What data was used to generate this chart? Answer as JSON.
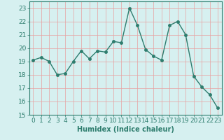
{
  "x": [
    0,
    1,
    2,
    3,
    4,
    5,
    6,
    7,
    8,
    9,
    10,
    11,
    12,
    13,
    14,
    15,
    16,
    17,
    18,
    19,
    20,
    21,
    22,
    23
  ],
  "y": [
    19.1,
    19.3,
    19.0,
    18.0,
    18.1,
    19.0,
    19.8,
    19.2,
    19.8,
    19.7,
    20.5,
    20.4,
    23.0,
    21.7,
    19.9,
    19.4,
    19.1,
    21.7,
    22.0,
    21.0,
    17.9,
    17.1,
    16.5,
    15.5
  ],
  "line_color": "#2e7d6e",
  "marker_color": "#2e7d6e",
  "bg_color": "#d6f0f0",
  "grid_color": "#e8a0a0",
  "xlabel": "Humidex (Indice chaleur)",
  "ylim": [
    15,
    23.5
  ],
  "xlim": [
    -0.5,
    23.5
  ],
  "yticks": [
    15,
    16,
    17,
    18,
    19,
    20,
    21,
    22,
    23
  ],
  "xticks": [
    0,
    1,
    2,
    3,
    4,
    5,
    6,
    7,
    8,
    9,
    10,
    11,
    12,
    13,
    14,
    15,
    16,
    17,
    18,
    19,
    20,
    21,
    22,
    23
  ],
  "xlabel_fontsize": 7,
  "tick_fontsize": 6.5,
  "line_width": 1.0,
  "marker_size": 2.5
}
